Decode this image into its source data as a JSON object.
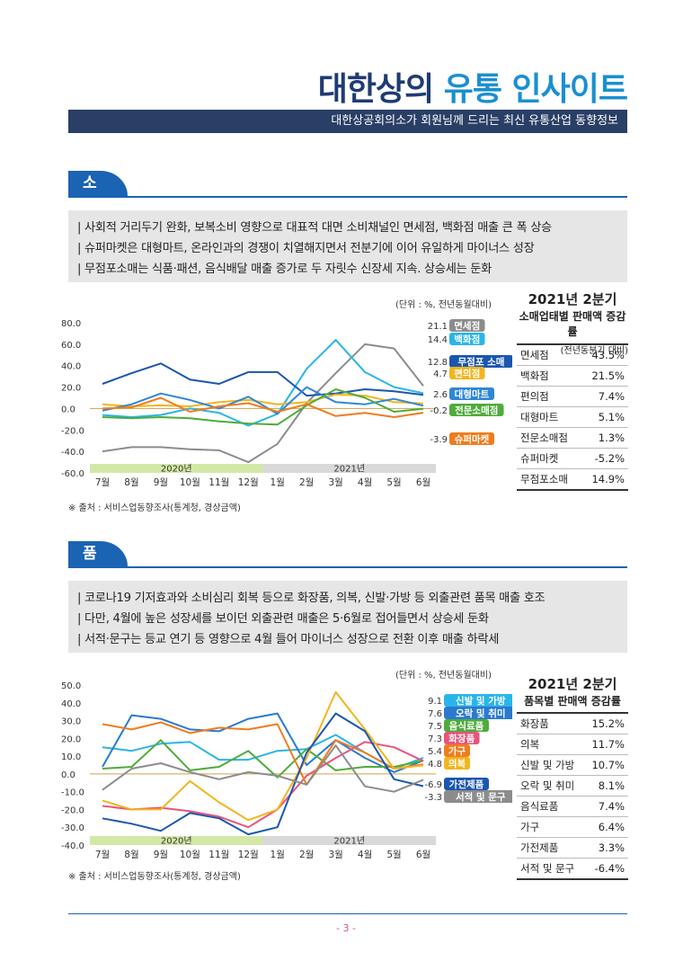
{
  "header": {
    "title_part1": "대한상의",
    "title_part2": "유통 인사이트",
    "subtitle": "대한상공회의소가 회원님께 드리는 최신 유통산업 동향정보"
  },
  "section1": {
    "heading": "소매업태별 판매액 증감률",
    "summary": [
      "| 사회적 거리두기 완화, 보복소비 영향으로 대표적 대면 소비채널인 면세점, 백화점 매출 큰 폭 상승",
      "| 슈퍼마켓은 대형마트, 온라인과의 경쟁이 치열해지면서  전분기에 이어 유일하게 마이너스 성장",
      "| 무점포소매는 식품·패션, 음식배달 매출 증가로 두 자릿수 신장세 지속. 상승세는 둔화"
    ],
    "unit": "(단위 : %, 전년동월대비)",
    "source": "※ 출처 : 서비스업동향조사(통계청, 경상금액)",
    "table_title_year": "2021년 2분기",
    "table_title_sub": "소매업태별 판매액 증감률",
    "table_note": "(전년동분기 대비)",
    "table": [
      {
        "label": "면세점",
        "value": "43.5%"
      },
      {
        "label": "백화점",
        "value": "21.5%"
      },
      {
        "label": "편의점",
        "value": "7.4%"
      },
      {
        "label": "대형마트",
        "value": "5.1%"
      },
      {
        "label": "전문소매점",
        "value": "1.3%"
      },
      {
        "label": "슈퍼마켓",
        "value": "-5.2%"
      },
      {
        "label": "무점포소매",
        "value": "14.9%"
      }
    ]
  },
  "section2": {
    "heading": "품목별 판매액 증감률",
    "summary": [
      "| 코로나19 기저효과와 소비심리 회복 등으로 화장품, 의복, 신발·가방 등 외출관련 품목 매출 호조",
      "| 다만, 4월에 높은 성장세를 보이던 외출관련 매출은 5·6월로 접어들면서 상승세 둔화",
      "| 서적·문구는 등교 연기 등 영향으로 4월 들어 마이너스 성장으로 전환 이후 매출 하락세"
    ],
    "unit": "(단위 : %, 전년동월대비)",
    "source": "※ 출처 : 서비스업동향조사(통계청, 경상금액)",
    "table_title_year": "2021년 2분기",
    "table_title_sub": "품목별 판매액 증감률",
    "table": [
      {
        "label": "화장품",
        "value": "15.2%"
      },
      {
        "label": "의복",
        "value": "11.7%"
      },
      {
        "label": "신발 및 가방",
        "value": "10.7%"
      },
      {
        "label": "오락 및 취미",
        "value": "8.1%"
      },
      {
        "label": "음식료품",
        "value": "7.4%"
      },
      {
        "label": "가구",
        "value": "6.4%"
      },
      {
        "label": "가전제품",
        "value": "3.3%"
      },
      {
        "label": "서적 및 문구",
        "value": "-6.4%"
      }
    ]
  },
  "page_number": "- 3 -",
  "chart_data": [
    {
      "type": "line",
      "x": [
        "7월",
        "8월",
        "9월",
        "10월",
        "11월",
        "12월",
        "1월",
        "2월",
        "3월",
        "4월",
        "5월",
        "6월"
      ],
      "period_labels": [
        "2020년",
        "2021년"
      ],
      "ylim": [
        -60,
        80
      ],
      "yticks": [
        "80.0",
        "60.0",
        "40.0",
        "20.0",
        "0.0",
        "-20.0",
        "-40.0",
        "-60.0"
      ],
      "series": [
        {
          "name": "면세점",
          "end_label": "21.1",
          "color": "#8c8c8c",
          "values": [
            -40,
            -36,
            -36,
            -38,
            -39,
            -50,
            -33,
            5,
            33,
            60,
            56,
            21.1
          ]
        },
        {
          "name": "백화점",
          "end_label": "14.4",
          "color": "#2ab5e8",
          "values": [
            -6,
            -8,
            -6,
            0,
            -4,
            -16,
            -5,
            37,
            64,
            34,
            20,
            14.4
          ]
        },
        {
          "name": "무점포 소매",
          "end_label": "12.8",
          "color": "#1b56b0",
          "values": [
            23,
            33,
            42,
            27,
            23,
            34,
            34,
            12,
            14,
            18,
            16,
            12.8
          ]
        },
        {
          "name": "편의점",
          "end_label": "4.7",
          "color": "#f2b51d",
          "values": [
            4,
            2,
            3,
            2,
            6,
            8,
            4,
            6,
            13,
            12,
            6,
            4.7
          ]
        },
        {
          "name": "대형마트",
          "end_label": "2.6",
          "color": "#2f86d8",
          "values": [
            -2,
            4,
            14,
            8,
            0,
            11,
            -5,
            20,
            6,
            4,
            9,
            2.6
          ]
        },
        {
          "name": "전문소매점",
          "end_label": "-0.2",
          "color": "#4fab3b",
          "values": [
            -8,
            -9,
            -8,
            -9,
            -12,
            -14,
            -15,
            3,
            18,
            10,
            -3,
            -0.2
          ]
        },
        {
          "name": "슈퍼마켓",
          "end_label": "-3.9",
          "color": "#f07c1c",
          "values": [
            0,
            1,
            10,
            -3,
            2,
            5,
            -3,
            4,
            -7,
            -4,
            -8,
            -3.9
          ]
        }
      ]
    },
    {
      "type": "line",
      "x": [
        "7월",
        "8월",
        "9월",
        "10월",
        "11월",
        "12월",
        "1월",
        "2월",
        "3월",
        "4월",
        "5월",
        "6월"
      ],
      "period_labels": [
        "2020년",
        "2021년"
      ],
      "ylim": [
        -40,
        50
      ],
      "yticks": [
        "50.0",
        "40.0",
        "30.0",
        "20.0",
        "10.0",
        "0.0",
        "-10.0",
        "-20.0",
        "-30.0",
        "-40.0"
      ],
      "series": [
        {
          "name": "신발 및 가방",
          "end_label": "9.1",
          "color": "#2ab5e8",
          "values": [
            15,
            13,
            17,
            18,
            8,
            8,
            13,
            14,
            22,
            12,
            3,
            9.1
          ]
        },
        {
          "name": "오락 및 취미",
          "end_label": "7.6",
          "color": "#2a7ad0",
          "values": [
            4,
            33,
            31,
            25,
            24,
            31,
            34,
            5,
            19,
            9,
            1,
            7.6
          ]
        },
        {
          "name": "음식료품",
          "end_label": "7.5",
          "color": "#4fab3b",
          "values": [
            3,
            4,
            19,
            2,
            4,
            13,
            -2,
            14,
            2,
            4,
            4,
            7.5
          ]
        },
        {
          "name": "화장품",
          "end_label": "7.3",
          "color": "#e8547a",
          "values": [
            -18,
            -20,
            -19,
            -21,
            -24,
            -30,
            -20,
            -1,
            9,
            18,
            15,
            7.3
          ]
        },
        {
          "name": "가구",
          "end_label": "5.4",
          "color": "#f07c1c",
          "values": [
            28,
            25,
            29,
            23,
            26,
            25,
            28,
            -6,
            19,
            12,
            3,
            5.4
          ]
        },
        {
          "name": "의복",
          "end_label": "4.8",
          "color": "#f2b51d",
          "values": [
            -15,
            -20,
            -20,
            -4,
            -16,
            -26,
            -20,
            9,
            46,
            25,
            3,
            4.8
          ]
        },
        {
          "name": "가전제품",
          "end_label": "-6.9",
          "color": "#1b56b0",
          "values": [
            -25,
            -28,
            -32,
            -22,
            -25,
            -34,
            -30,
            12,
            34,
            24,
            -3,
            -6.9
          ]
        },
        {
          "name": "서적 및 문구",
          "end_label": "-3.3",
          "color": "#8c8c8c",
          "values": [
            -9,
            3,
            6,
            1,
            -3,
            1,
            -1,
            -6,
            16,
            -7,
            -10,
            -3.3
          ]
        }
      ]
    }
  ]
}
